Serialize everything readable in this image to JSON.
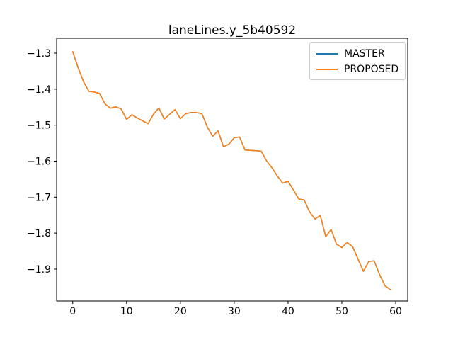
{
  "chart_data": {
    "type": "line",
    "title": "laneLines.y_5b40592",
    "xlabel": "",
    "ylabel": "",
    "grid": false,
    "legend_position": "upper right",
    "line_width": 1.5,
    "xlim": [
      -2.99,
      62.23
    ],
    "ylim": [
      -1.9886,
      -1.2587
    ],
    "x_ticks": [
      0,
      10,
      20,
      30,
      40,
      50,
      60
    ],
    "x_tick_labels": [
      "0",
      "10",
      "20",
      "30",
      "40",
      "50",
      "60"
    ],
    "y_ticks": [
      -1.3,
      -1.4,
      -1.5,
      -1.6,
      -1.7,
      -1.8,
      -1.9
    ],
    "y_tick_labels": [
      "−1.3",
      "−1.4",
      "−1.5",
      "−1.6",
      "−1.7",
      "−1.8",
      "−1.9"
    ],
    "x": [
      0,
      1,
      2,
      3,
      4,
      5,
      6,
      7,
      8,
      9,
      10,
      11,
      12,
      13,
      14,
      15,
      16,
      17,
      18,
      19,
      20,
      21,
      22,
      23,
      24,
      25,
      26,
      27,
      28,
      29,
      30,
      31,
      32,
      33,
      34,
      35,
      36,
      37,
      38,
      39,
      40,
      41,
      42,
      43,
      44,
      45,
      46,
      47,
      48,
      49,
      50,
      51,
      52,
      53,
      54,
      55,
      56,
      57,
      58,
      59
    ],
    "series": [
      {
        "name": "MASTER",
        "color": "#1f77b4",
        "values": [
          -1.296,
          -1.34,
          -1.379,
          -1.406,
          -1.408,
          -1.412,
          -1.441,
          -1.453,
          -1.449,
          -1.455,
          -1.484,
          -1.471,
          -1.48,
          -1.488,
          -1.496,
          -1.47,
          -1.452,
          -1.483,
          -1.47,
          -1.457,
          -1.482,
          -1.468,
          -1.465,
          -1.465,
          -1.468,
          -1.505,
          -1.531,
          -1.516,
          -1.56,
          -1.553,
          -1.535,
          -1.533,
          -1.569,
          -1.57,
          -1.571,
          -1.572,
          -1.599,
          -1.618,
          -1.641,
          -1.661,
          -1.656,
          -1.68,
          -1.705,
          -1.708,
          -1.741,
          -1.761,
          -1.751,
          -1.81,
          -1.79,
          -1.831,
          -1.84,
          -1.826,
          -1.838,
          -1.872,
          -1.906,
          -1.879,
          -1.877,
          -1.915,
          -1.946,
          -1.957
        ]
      },
      {
        "name": "PROPOSED",
        "color": "#ff7f0e",
        "values": [
          -1.296,
          -1.34,
          -1.379,
          -1.406,
          -1.408,
          -1.412,
          -1.441,
          -1.453,
          -1.449,
          -1.455,
          -1.484,
          -1.471,
          -1.48,
          -1.488,
          -1.496,
          -1.47,
          -1.452,
          -1.483,
          -1.47,
          -1.457,
          -1.482,
          -1.468,
          -1.465,
          -1.465,
          -1.468,
          -1.505,
          -1.531,
          -1.516,
          -1.56,
          -1.553,
          -1.535,
          -1.533,
          -1.569,
          -1.57,
          -1.571,
          -1.572,
          -1.599,
          -1.618,
          -1.641,
          -1.661,
          -1.656,
          -1.68,
          -1.705,
          -1.708,
          -1.741,
          -1.761,
          -1.751,
          -1.81,
          -1.79,
          -1.831,
          -1.84,
          -1.826,
          -1.838,
          -1.872,
          -1.906,
          -1.879,
          -1.877,
          -1.915,
          -1.946,
          -1.957
        ]
      }
    ]
  }
}
